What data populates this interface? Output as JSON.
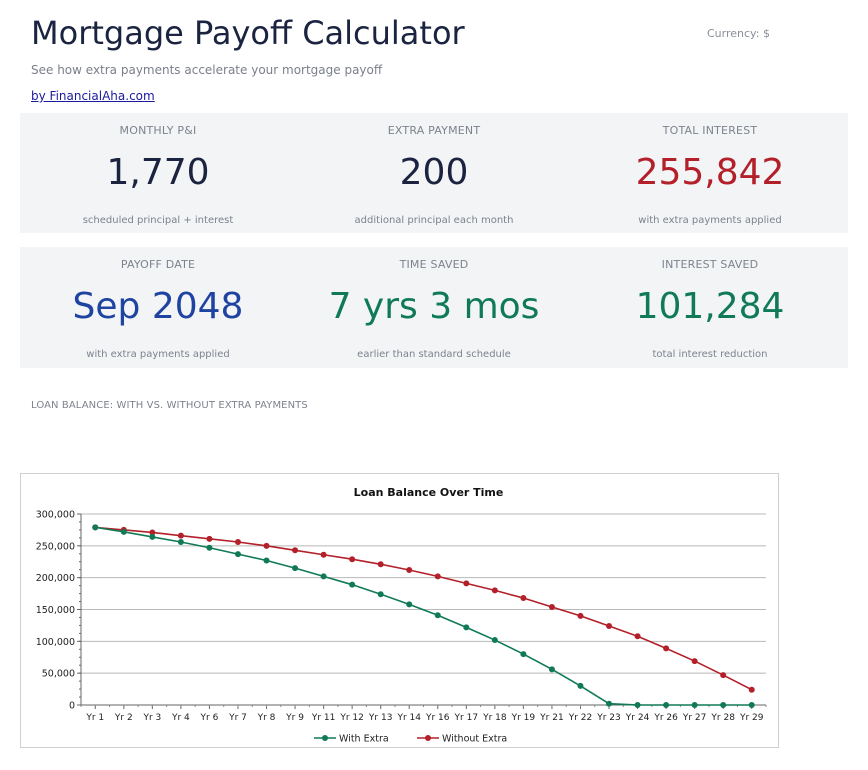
{
  "header": {
    "title": "Mortgage Payoff Calculator",
    "currency": "Currency: $",
    "subtitle": "See how extra payments accelerate your mortgage payoff",
    "byline": "by FinancialAha.com"
  },
  "cards": [
    {
      "label": "MONTHLY P&I",
      "value": "1,770",
      "note": "scheduled principal + interest",
      "color": "#1b2340"
    },
    {
      "label": "EXTRA PAYMENT",
      "value": "200",
      "note": "additional principal each month",
      "color": "#1b2340"
    },
    {
      "label": "TOTAL INTEREST",
      "value": "255,842",
      "note": "with extra payments applied",
      "color": "#b3202a"
    },
    {
      "label": "PAYOFF DATE",
      "value": "Sep 2048",
      "note": "with extra payments applied",
      "color": "#1f43a0"
    },
    {
      "label": "TIME SAVED",
      "value": "7 yrs 3 mos",
      "note": "earlier than standard schedule",
      "color": "#0f7a55"
    },
    {
      "label": "INTEREST SAVED",
      "value": "101,284",
      "note": "total interest reduction",
      "color": "#0f7a55"
    }
  ],
  "section_label": "LOAN BALANCE: WITH VS. WITHOUT EXTRA PAYMENTS",
  "chart_data": {
    "type": "line",
    "title": "Loan Balance Over Time",
    "xlabel": "",
    "ylabel": "",
    "ylim": [
      0,
      300000
    ],
    "yticks": [
      0,
      50000,
      100000,
      150000,
      200000,
      250000,
      300000
    ],
    "ytick_labels": [
      "0",
      "50,000",
      "100,000",
      "150,000",
      "200,000",
      "250,000",
      "300,000"
    ],
    "grid": true,
    "legend_position": "bottom",
    "categories": [
      "Yr 1",
      "Yr 2",
      "Yr 3",
      "Yr 4",
      "Yr 6",
      "Yr 7",
      "Yr 8",
      "Yr 9",
      "Yr 11",
      "Yr 12",
      "Yr 13",
      "Yr 14",
      "Yr 16",
      "Yr 17",
      "Yr 18",
      "Yr 19",
      "Yr 21",
      "Yr 22",
      "Yr 23",
      "Yr 24",
      "Yr 26",
      "Yr 27",
      "Yr 28",
      "Yr 29"
    ],
    "series": [
      {
        "name": "With Extra",
        "color": "#0f7a55",
        "values": [
          279000,
          272000,
          264000,
          256000,
          247000,
          237000,
          227000,
          215000,
          202000,
          189000,
          174000,
          158000,
          141000,
          122000,
          102000,
          80000,
          56000,
          30000,
          2000,
          0,
          0,
          0,
          0,
          0
        ]
      },
      {
        "name": "Without Extra",
        "color": "#b3202a",
        "values": [
          279000,
          275000,
          271000,
          266000,
          261000,
          256000,
          250000,
          243000,
          236000,
          229000,
          221000,
          212000,
          202000,
          191000,
          180000,
          168000,
          154000,
          140000,
          124000,
          108000,
          89000,
          69000,
          47000,
          24000
        ]
      }
    ]
  }
}
